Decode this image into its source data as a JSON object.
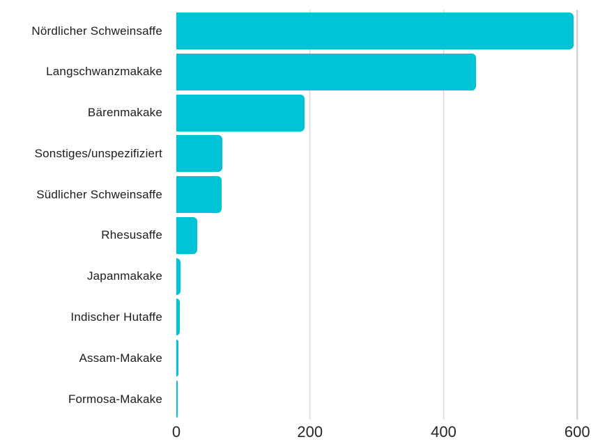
{
  "chart_data": {
    "type": "bar",
    "orientation": "horizontal",
    "title": "",
    "xlabel": "",
    "ylabel": "",
    "categories": [
      "Nördlicher Schweinsaffe",
      "Langschwanzmakake",
      "Bärenmakake",
      "Sonstiges/unspezifiziert",
      "Südlicher Schweinsaffe",
      "Rhesusaffe",
      "Japanmakake",
      "Indischer Hutaffe",
      "Assam-Makake",
      "Formosa-Makake"
    ],
    "values": [
      595,
      448,
      192,
      69,
      68,
      31,
      6,
      5,
      3,
      2
    ],
    "xlim": [
      0,
      655
    ],
    "xticks": [
      0,
      200,
      400,
      600
    ],
    "xtick_labels": [
      "0",
      "200",
      "400",
      "600"
    ],
    "grid": "vertical-gridlines-at-200-400-600",
    "legend": "none",
    "bar_color": "#00C3D6",
    "gridline_color": "#C9C9C9",
    "category_label_color": "#1C1C1C",
    "tick_label_color": "#262626",
    "background_color": "#FFFFFF"
  }
}
